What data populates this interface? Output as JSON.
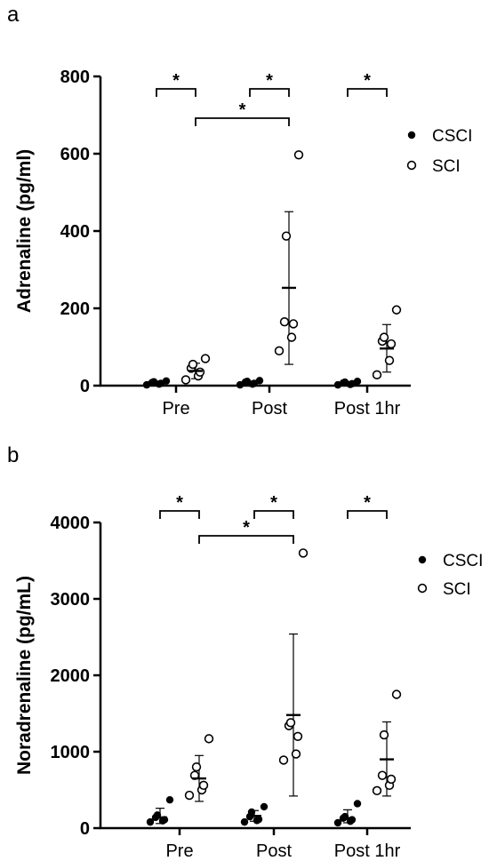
{
  "chart_data": [
    {
      "panel": "a",
      "type": "scatter",
      "ylabel": "Adrenaline (pg/ml)",
      "ylim": [
        0,
        800
      ],
      "yticks": [
        0,
        200,
        400,
        600,
        800
      ],
      "categories": [
        "Pre",
        "Post",
        "Post 1hr"
      ],
      "legend": {
        "placement": "right",
        "entries": [
          "CSCI",
          "SCI"
        ]
      },
      "series": [
        {
          "name": "CSCI",
          "marker": "filled",
          "groups": [
            {
              "values": [
                2,
                4,
                6,
                8,
                10,
                12
              ],
              "mean": 6
            },
            {
              "values": [
                2,
                4,
                6,
                9,
                11,
                13
              ],
              "mean": 7
            },
            {
              "values": [
                2,
                3,
                5,
                7,
                9,
                11
              ],
              "mean": 6
            }
          ]
        },
        {
          "name": "SCI",
          "marker": "open",
          "groups": [
            {
              "values": [
                15,
                25,
                35,
                45,
                55,
                70
              ],
              "mean": 38,
              "sd": [
                18,
                58
              ]
            },
            {
              "values": [
                90,
                125,
                160,
                165,
                387,
                597
              ],
              "mean": 253,
              "sd": [
                55,
                450
              ]
            },
            {
              "values": [
                28,
                65,
                108,
                115,
                125,
                196
              ],
              "mean": 96,
              "sd": [
                35,
                158
              ]
            }
          ]
        }
      ],
      "significance": [
        {
          "label": "*",
          "from": [
            0,
            "CSCI"
          ],
          "to": [
            0,
            "SCI"
          ]
        },
        {
          "label": "*",
          "from": [
            1,
            "CSCI"
          ],
          "to": [
            1,
            "SCI"
          ]
        },
        {
          "label": "*",
          "from": [
            2,
            "CSCI"
          ],
          "to": [
            2,
            "SCI"
          ]
        },
        {
          "label": "*",
          "from": [
            0,
            "SCI"
          ],
          "to": [
            1,
            "SCI"
          ]
        }
      ]
    },
    {
      "panel": "b",
      "type": "scatter",
      "ylabel": "Noradrenaline (pg/mL)",
      "ylim": [
        0,
        4000
      ],
      "yticks": [
        0,
        1000,
        2000,
        3000,
        4000
      ],
      "categories": [
        "Pre",
        "Post",
        "Post 1hr"
      ],
      "legend": {
        "placement": "right",
        "entries": [
          "CSCI",
          "SCI"
        ]
      },
      "series": [
        {
          "name": "CSCI",
          "marker": "filled",
          "groups": [
            {
              "values": [
                80,
                95,
                110,
                140,
                170,
                370
              ],
              "mean": 140,
              "sd": [
                60,
                260
              ]
            },
            {
              "values": [
                80,
                100,
                115,
                150,
                210,
                280
              ],
              "mean": 160,
              "sd": [
                90,
                230
              ]
            },
            {
              "values": [
                70,
                90,
                110,
                130,
                150,
                320
              ],
              "mean": 130,
              "sd": [
                70,
                240
              ]
            }
          ]
        },
        {
          "name": "SCI",
          "marker": "open",
          "groups": [
            {
              "values": [
                430,
                500,
                560,
                690,
                800,
                1170
              ],
              "mean": 650,
              "sd": [
                350,
                950
              ]
            },
            {
              "values": [
                890,
                970,
                1200,
                1340,
                1380,
                3600
              ],
              "mean": 1480,
              "sd": [
                420,
                2540
              ]
            },
            {
              "values": [
                490,
                560,
                640,
                690,
                1220,
                1750
              ],
              "mean": 900,
              "sd": [
                420,
                1390
              ]
            }
          ]
        }
      ],
      "significance": [
        {
          "label": "*",
          "from": [
            0,
            "CSCI"
          ],
          "to": [
            0,
            "SCI"
          ]
        },
        {
          "label": "*",
          "from": [
            1,
            "CSCI"
          ],
          "to": [
            1,
            "SCI"
          ]
        },
        {
          "label": "*",
          "from": [
            2,
            "CSCI"
          ],
          "to": [
            2,
            "SCI"
          ]
        },
        {
          "label": "*",
          "from": [
            0,
            "SCI"
          ],
          "to": [
            1,
            "SCI"
          ]
        }
      ]
    }
  ]
}
